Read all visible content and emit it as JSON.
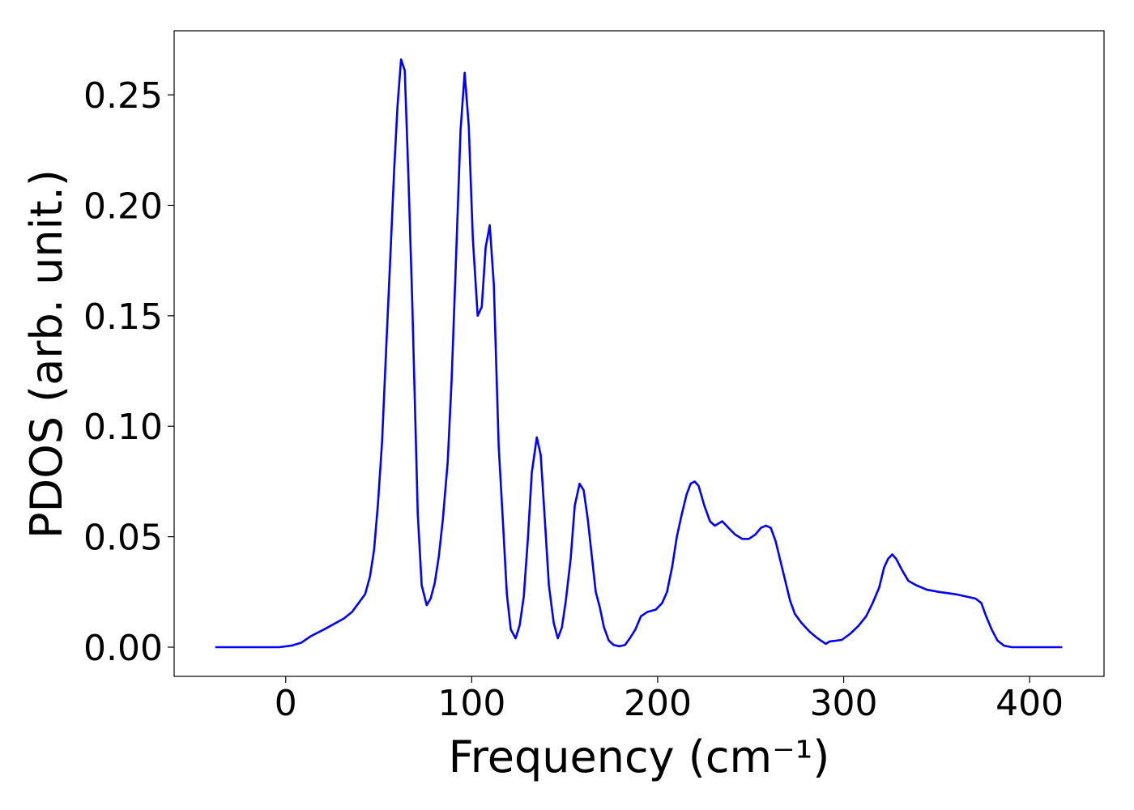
{
  "chart_data": {
    "type": "line",
    "xlabel": "Frequency (cm⁻¹)",
    "ylabel": "PDOS (arb. unit.)",
    "xlim": [
      -60,
      440
    ],
    "ylim": [
      -0.0132,
      0.279
    ],
    "xticks": [
      0,
      100,
      200,
      300,
      400
    ],
    "yticks": [
      {
        "value": 0,
        "label": "0.00"
      },
      {
        "value": 0.05,
        "label": "0.05"
      },
      {
        "value": 0.1,
        "label": "0.10"
      },
      {
        "value": 0.15,
        "label": "0.15"
      },
      {
        "value": 0.2,
        "label": "0.20"
      },
      {
        "value": 0.25,
        "label": "0.25"
      }
    ],
    "grid": false,
    "series": [
      {
        "color": "#0000ff",
        "x": [
          -37.9,
          -3.5,
          3,
          8.3,
          13.5,
          20.5,
          27,
          31.3,
          35.7,
          39.2,
          42.7,
          45.3,
          47.5,
          49.6,
          51.8,
          54,
          56.2,
          58.3,
          60.1,
          62,
          64,
          66,
          68,
          71,
          73.1,
          75.8,
          77.9,
          80.1,
          82.3,
          84.5,
          87.1,
          89.2,
          91.4,
          94,
          96.2,
          98.4,
          100.6,
          103.2,
          105.4,
          107.5,
          109.7,
          111.9,
          114.5,
          116.7,
          118.9,
          121,
          123.6,
          125.8,
          128,
          130.2,
          132.3,
          135,
          137.1,
          139.3,
          141.5,
          144.1,
          146.3,
          148.5,
          150.6,
          153.2,
          155.4,
          158,
          160.2,
          162.4,
          164.6,
          166.7,
          168.9,
          171.1,
          173.7,
          176.3,
          179.4,
          182.4,
          185,
          188,
          191,
          194.6,
          199,
          202.4,
          205,
          207.7,
          210.3,
          212.9,
          215.5,
          217.7,
          219.9,
          222,
          225.1,
          228.1,
          230.7,
          234.7,
          238.1,
          241.6,
          245.5,
          249,
          252.5,
          255.5,
          258.2,
          260.8,
          263.4,
          266,
          268.6,
          271.2,
          273.8,
          277.3,
          281.7,
          286,
          290.4,
          292.5,
          299,
          303.4,
          307.8,
          312.1,
          315.6,
          319.1,
          321.7,
          323.9,
          326.1,
          328.2,
          331.3,
          334.8,
          339.1,
          344.8,
          351.3,
          360,
          370.9,
          374,
          376.6,
          379.6,
          382.7,
          386.2,
          390.5,
          417.5
        ],
        "values": [
          0,
          0,
          0.0007,
          0.002,
          0.005,
          0.008,
          0.011,
          0.013,
          0.016,
          0.02,
          0.024,
          0.032,
          0.044,
          0.065,
          0.093,
          0.135,
          0.176,
          0.216,
          0.245,
          0.266,
          0.261,
          0.212,
          0.157,
          0.06,
          0.028,
          0.019,
          0.022,
          0.029,
          0.041,
          0.058,
          0.084,
          0.121,
          0.172,
          0.234,
          0.26,
          0.236,
          0.185,
          0.15,
          0.154,
          0.181,
          0.191,
          0.164,
          0.091,
          0.058,
          0.024,
          0.008,
          0.004,
          0.01,
          0.023,
          0.049,
          0.079,
          0.095,
          0.087,
          0.058,
          0.028,
          0.011,
          0.004,
          0.009,
          0.021,
          0.04,
          0.064,
          0.074,
          0.071,
          0.058,
          0.041,
          0.025,
          0.018,
          0.009,
          0.003,
          0.001,
          0.0004,
          0.001,
          0.004,
          0.008,
          0.014,
          0.016,
          0.017,
          0.02,
          0.025,
          0.036,
          0.05,
          0.06,
          0.069,
          0.074,
          0.075,
          0.073,
          0.064,
          0.057,
          0.055,
          0.057,
          0.054,
          0.051,
          0.049,
          0.049,
          0.051,
          0.054,
          0.055,
          0.054,
          0.048,
          0.039,
          0.03,
          0.021,
          0.015,
          0.011,
          0.007,
          0.004,
          0.0015,
          0.0026,
          0.0033,
          0.006,
          0.0095,
          0.014,
          0.02,
          0.027,
          0.036,
          0.04,
          0.042,
          0.04,
          0.035,
          0.03,
          0.028,
          0.026,
          0.025,
          0.024,
          0.022,
          0.02,
          0.014,
          0.008,
          0.003,
          0.0007,
          0,
          0
        ]
      }
    ]
  }
}
